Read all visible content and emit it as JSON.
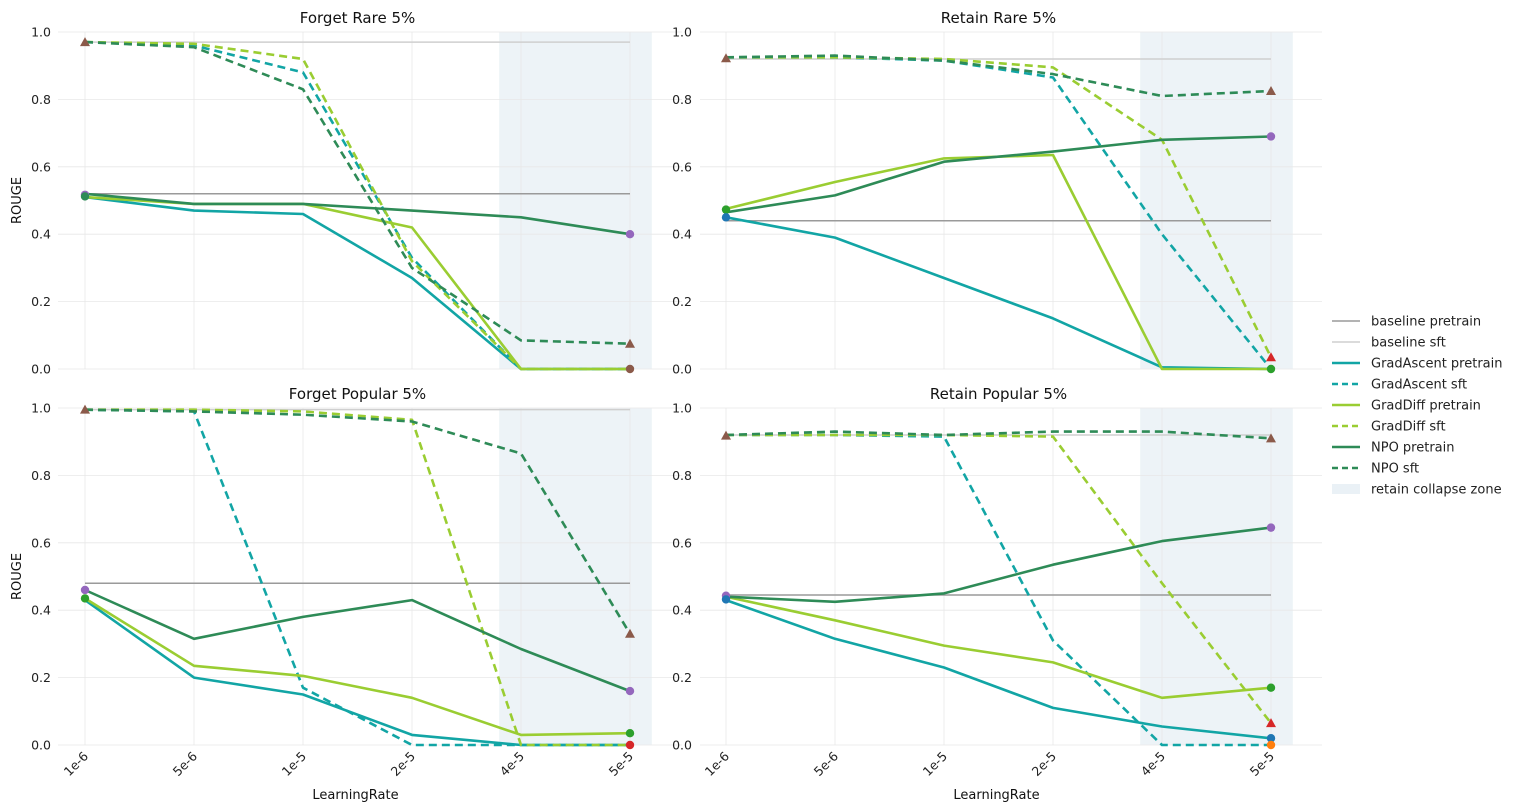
{
  "chart_data": {
    "type": "line",
    "x_label": "LearningRate",
    "y_label": "ROUGE",
    "x_categories": [
      "1e-6",
      "5e-6",
      "1e-5",
      "2e-5",
      "4e-5",
      "5e-5"
    ],
    "y_range": [
      0.0,
      1.0
    ],
    "y_ticks": [
      "0.0",
      "0.2",
      "0.4",
      "0.6",
      "0.8",
      "1.0"
    ],
    "grid": true,
    "legend_position": "right",
    "shaded_region": {
      "label": "retain collapse zone",
      "from_category": "2e-5",
      "to_category": "5e-5",
      "color": "#dce7f0"
    },
    "legend": [
      {
        "label": "baseline pretrain",
        "color": "#9a9a9a",
        "style": "solid",
        "kind": "line"
      },
      {
        "label": "baseline sft",
        "color": "#cfcfcf",
        "style": "solid",
        "kind": "line"
      },
      {
        "label": "GradAscent pretrain",
        "color": "#12a5a5",
        "style": "solid",
        "kind": "line"
      },
      {
        "label": "GradAscent sft",
        "color": "#12a5a5",
        "style": "dashed",
        "kind": "line"
      },
      {
        "label": "GradDiff pretrain",
        "color": "#9acd32",
        "style": "solid",
        "kind": "line"
      },
      {
        "label": "GradDiff sft",
        "color": "#9acd32",
        "style": "dashed",
        "kind": "line"
      },
      {
        "label": "NPO pretrain",
        "color": "#2e8b57",
        "style": "solid",
        "kind": "line"
      },
      {
        "label": "NPO sft",
        "color": "#2e8b57",
        "style": "dashed",
        "kind": "line"
      },
      {
        "label": "retain collapse zone",
        "color": "#dce7f0",
        "kind": "patch"
      }
    ],
    "panels": [
      {
        "title": "Forget Rare 5%",
        "baseline_pretrain": 0.52,
        "baseline_sft": 0.97,
        "series": [
          {
            "name": "GradAscent pretrain",
            "color": "#12a5a5",
            "style": "solid",
            "values": [
              0.51,
              0.47,
              0.46,
              0.27,
              0.0,
              0.0
            ]
          },
          {
            "name": "GradAscent sft",
            "color": "#12a5a5",
            "style": "dashed",
            "values": [
              0.97,
              0.96,
              0.88,
              0.33,
              0.0,
              0.0
            ]
          },
          {
            "name": "GradDiff pretrain",
            "color": "#9acd32",
            "style": "solid",
            "values": [
              0.51,
              0.49,
              0.49,
              0.42,
              0.0,
              0.0
            ]
          },
          {
            "name": "GradDiff sft",
            "color": "#9acd32",
            "style": "dashed",
            "values": [
              0.97,
              0.965,
              0.92,
              0.32,
              0.0,
              0.0
            ]
          },
          {
            "name": "NPO pretrain",
            "color": "#2e8b57",
            "style": "solid",
            "values": [
              0.52,
              0.49,
              0.49,
              0.47,
              0.45,
              0.4
            ]
          },
          {
            "name": "NPO sft",
            "color": "#2e8b57",
            "style": "dashed",
            "values": [
              0.97,
              0.955,
              0.83,
              0.3,
              0.085,
              0.075
            ]
          }
        ],
        "markers": [
          {
            "category": "1e-6",
            "value": 0.97,
            "shape": "triangle",
            "color": "#8b5a4a"
          },
          {
            "category": "1e-6",
            "value": 0.517,
            "shape": "circle",
            "color": "#9467bd"
          },
          {
            "category": "1e-6",
            "value": 0.512,
            "shape": "circle",
            "color": "#2e8b57"
          },
          {
            "category": "5e-5",
            "value": 0.4,
            "shape": "circle",
            "color": "#9467bd"
          },
          {
            "category": "5e-5",
            "value": 0.075,
            "shape": "triangle",
            "color": "#8b5a4a"
          },
          {
            "category": "5e-5",
            "value": 0.0,
            "shape": "circle",
            "color": "#8b5a4a"
          }
        ]
      },
      {
        "title": "Retain Rare 5%",
        "baseline_pretrain": 0.44,
        "baseline_sft": 0.92,
        "series": [
          {
            "name": "GradAscent pretrain",
            "color": "#12a5a5",
            "style": "solid",
            "values": [
              0.45,
              0.39,
              0.27,
              0.15,
              0.005,
              0.0
            ]
          },
          {
            "name": "GradAscent sft",
            "color": "#12a5a5",
            "style": "dashed",
            "values": [
              0.925,
              0.925,
              0.915,
              0.865,
              0.4,
              0.0
            ]
          },
          {
            "name": "GradDiff pretrain",
            "color": "#9acd32",
            "style": "solid",
            "values": [
              0.475,
              0.555,
              0.625,
              0.635,
              0.0,
              0.0
            ]
          },
          {
            "name": "GradDiff sft",
            "color": "#9acd32",
            "style": "dashed",
            "values": [
              0.925,
              0.925,
              0.92,
              0.895,
              0.68,
              0.035
            ]
          },
          {
            "name": "NPO pretrain",
            "color": "#2e8b57",
            "style": "solid",
            "values": [
              0.465,
              0.515,
              0.615,
              0.645,
              0.68,
              0.69
            ]
          },
          {
            "name": "NPO sft",
            "color": "#2e8b57",
            "style": "dashed",
            "values": [
              0.925,
              0.93,
              0.915,
              0.875,
              0.81,
              0.825
            ]
          }
        ],
        "markers": [
          {
            "category": "1e-6",
            "value": 0.922,
            "shape": "triangle",
            "color": "#8b5a4a"
          },
          {
            "category": "1e-6",
            "value": 0.473,
            "shape": "circle",
            "color": "#2ca02c"
          },
          {
            "category": "1e-6",
            "value": 0.45,
            "shape": "circle",
            "color": "#1f77b4"
          },
          {
            "category": "5e-5",
            "value": 0.825,
            "shape": "triangle",
            "color": "#8b5a4a"
          },
          {
            "category": "5e-5",
            "value": 0.69,
            "shape": "circle",
            "color": "#9467bd"
          },
          {
            "category": "5e-5",
            "value": 0.035,
            "shape": "triangle",
            "color": "#d62728"
          },
          {
            "category": "5e-5",
            "value": 0.0,
            "shape": "circle",
            "color": "#2ca02c"
          }
        ]
      },
      {
        "title": "Forget Popular 5%",
        "baseline_pretrain": 0.48,
        "baseline_sft": 0.995,
        "series": [
          {
            "name": "GradAscent pretrain",
            "color": "#12a5a5",
            "style": "solid",
            "values": [
              0.43,
              0.2,
              0.15,
              0.03,
              0.0,
              0.0
            ]
          },
          {
            "name": "GradAscent sft",
            "color": "#12a5a5",
            "style": "dashed",
            "values": [
              0.995,
              0.99,
              0.17,
              0.0,
              0.0,
              0.0
            ]
          },
          {
            "name": "GradDiff pretrain",
            "color": "#9acd32",
            "style": "solid",
            "values": [
              0.435,
              0.235,
              0.205,
              0.14,
              0.03,
              0.035
            ]
          },
          {
            "name": "GradDiff sft",
            "color": "#9acd32",
            "style": "dashed",
            "values": [
              0.995,
              0.995,
              0.99,
              0.965,
              0.0,
              0.0
            ]
          },
          {
            "name": "NPO pretrain",
            "color": "#2e8b57",
            "style": "solid",
            "values": [
              0.46,
              0.315,
              0.38,
              0.43,
              0.285,
              0.16
            ]
          },
          {
            "name": "NPO sft",
            "color": "#2e8b57",
            "style": "dashed",
            "values": [
              0.995,
              0.99,
              0.98,
              0.96,
              0.865,
              0.33
            ]
          }
        ],
        "markers": [
          {
            "category": "1e-6",
            "value": 0.995,
            "shape": "triangle",
            "color": "#8b5a4a"
          },
          {
            "category": "1e-6",
            "value": 0.46,
            "shape": "circle",
            "color": "#9467bd"
          },
          {
            "category": "1e-6",
            "value": 0.435,
            "shape": "circle",
            "color": "#2ca02c"
          },
          {
            "category": "5e-5",
            "value": 0.33,
            "shape": "triangle",
            "color": "#8b5a4a"
          },
          {
            "category": "5e-5",
            "value": 0.16,
            "shape": "circle",
            "color": "#9467bd"
          },
          {
            "category": "5e-5",
            "value": 0.035,
            "shape": "circle",
            "color": "#2ca02c"
          },
          {
            "category": "5e-5",
            "value": 0.0,
            "shape": "circle",
            "color": "#d62728"
          }
        ]
      },
      {
        "title": "Retain Popular 5%",
        "baseline_pretrain": 0.445,
        "baseline_sft": 0.92,
        "series": [
          {
            "name": "GradAscent pretrain",
            "color": "#12a5a5",
            "style": "solid",
            "values": [
              0.43,
              0.315,
              0.23,
              0.11,
              0.055,
              0.02
            ]
          },
          {
            "name": "GradAscent sft",
            "color": "#12a5a5",
            "style": "dashed",
            "values": [
              0.92,
              0.92,
              0.915,
              0.31,
              0.0,
              0.0
            ]
          },
          {
            "name": "GradDiff pretrain",
            "color": "#9acd32",
            "style": "solid",
            "values": [
              0.44,
              0.37,
              0.295,
              0.245,
              0.14,
              0.17
            ]
          },
          {
            "name": "GradDiff sft",
            "color": "#9acd32",
            "style": "dashed",
            "values": [
              0.92,
              0.92,
              0.92,
              0.915,
              0.48,
              0.065
            ]
          },
          {
            "name": "NPO pretrain",
            "color": "#2e8b57",
            "style": "solid",
            "values": [
              0.44,
              0.425,
              0.45,
              0.535,
              0.605,
              0.645
            ]
          },
          {
            "name": "NPO sft",
            "color": "#2e8b57",
            "style": "dashed",
            "values": [
              0.92,
              0.93,
              0.92,
              0.93,
              0.93,
              0.91
            ]
          }
        ],
        "markers": [
          {
            "category": "1e-6",
            "value": 0.918,
            "shape": "triangle",
            "color": "#8b5a4a"
          },
          {
            "category": "1e-6",
            "value": 0.443,
            "shape": "circle",
            "color": "#9467bd"
          },
          {
            "category": "1e-6",
            "value": 0.432,
            "shape": "circle",
            "color": "#1f77b4"
          },
          {
            "category": "5e-5",
            "value": 0.91,
            "shape": "triangle",
            "color": "#8b5a4a"
          },
          {
            "category": "5e-5",
            "value": 0.645,
            "shape": "circle",
            "color": "#9467bd"
          },
          {
            "category": "5e-5",
            "value": 0.17,
            "shape": "circle",
            "color": "#2ca02c"
          },
          {
            "category": "5e-5",
            "value": 0.065,
            "shape": "triangle",
            "color": "#d62728"
          },
          {
            "category": "5e-5",
            "value": 0.02,
            "shape": "circle",
            "color": "#1f77b4"
          },
          {
            "category": "5e-5",
            "value": 0.0,
            "shape": "circle",
            "color": "#ff7f0e"
          }
        ]
      }
    ]
  }
}
